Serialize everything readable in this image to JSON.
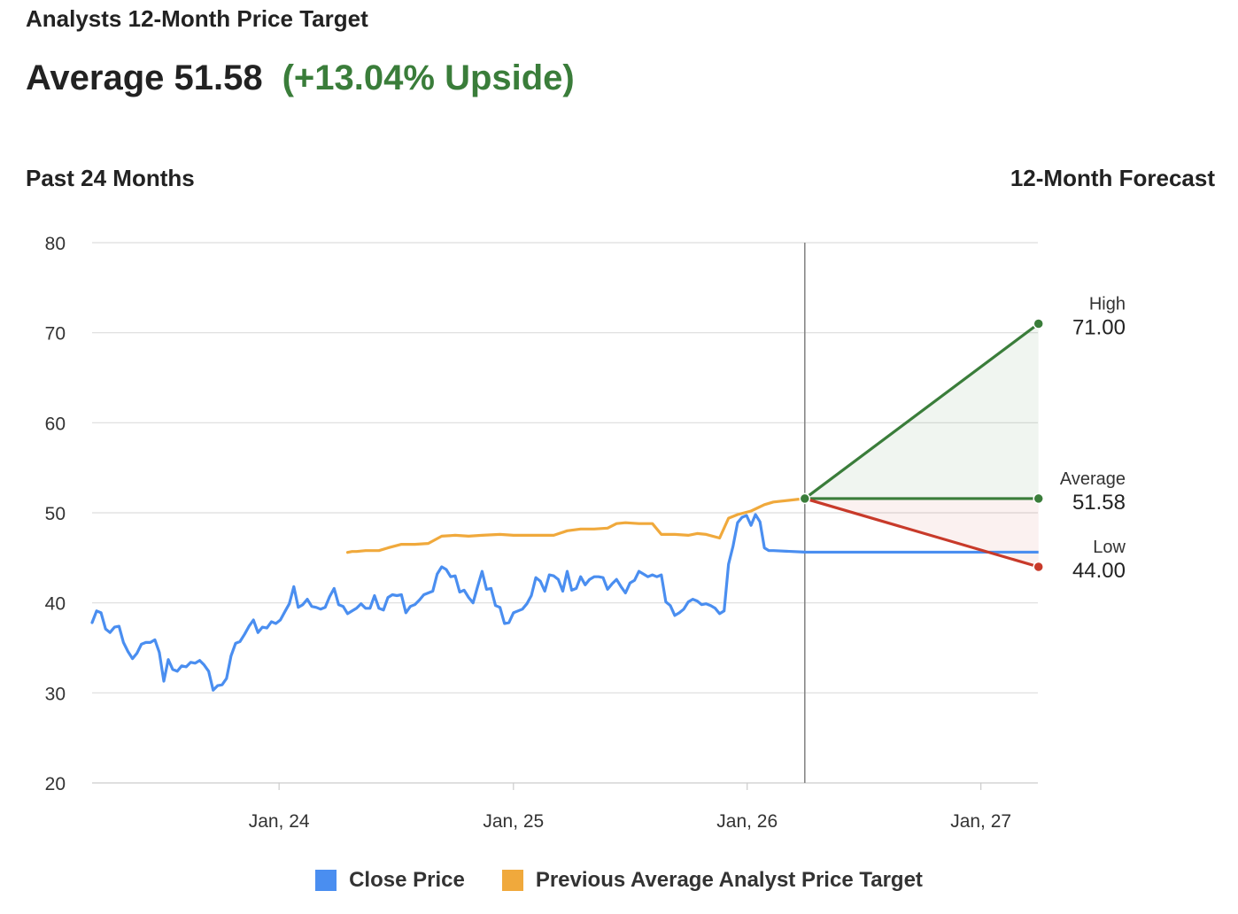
{
  "header": {
    "subtitle": "Analysts 12-Month Price Target",
    "average_text": "Average 51.58",
    "upside_text": "(+13.04% Upside)"
  },
  "sections": {
    "left": "Past 24 Months",
    "right": "12-Month Forecast"
  },
  "colors": {
    "close": "#4a8ef0",
    "previous_target": "#f0a93c",
    "high": "#3a7d3a",
    "low": "#c83a2a",
    "divider": "#888888",
    "grid": "#dddddd"
  },
  "legend": [
    {
      "label": "Close Price",
      "color": "#4a8ef0"
    },
    {
      "label": "Previous Average Analyst Price Target",
      "color": "#f0a93c"
    }
  ],
  "chart_data": {
    "type": "line",
    "title": "",
    "xlabel": "",
    "ylabel": "",
    "ylim": [
      20,
      80
    ],
    "yticks": [
      20,
      30,
      40,
      50,
      60,
      70,
      80
    ],
    "xlim": [
      "2023-03-15",
      "2027-03-31"
    ],
    "xticks": [
      {
        "date": "2024-01-01",
        "label": "Jan, 24"
      },
      {
        "date": "2025-01-01",
        "label": "Jan, 25"
      },
      {
        "date": "2026-01-01",
        "label": "Jan, 26"
      },
      {
        "date": "2027-01-01",
        "label": "Jan, 27"
      }
    ],
    "grid": true,
    "legend_position": "bottom",
    "forecast_start": "2026-04-01",
    "forecast_end": "2027-04-01",
    "series": [
      {
        "name": "Close Price",
        "points": [
          [
            "2023-03-15",
            37.8
          ],
          [
            "2023-03-22",
            39.1
          ],
          [
            "2023-03-29",
            38.9
          ],
          [
            "2023-04-05",
            37.1
          ],
          [
            "2023-04-12",
            36.7
          ],
          [
            "2023-04-19",
            37.3
          ],
          [
            "2023-04-26",
            37.4
          ],
          [
            "2023-05-03",
            35.6
          ],
          [
            "2023-05-10",
            34.6
          ],
          [
            "2023-05-17",
            33.8
          ],
          [
            "2023-05-24",
            34.4
          ],
          [
            "2023-05-31",
            35.4
          ],
          [
            "2023-06-07",
            35.6
          ],
          [
            "2023-06-14",
            35.6
          ],
          [
            "2023-06-21",
            35.9
          ],
          [
            "2023-06-28",
            34.5
          ],
          [
            "2023-07-05",
            31.3
          ],
          [
            "2023-07-12",
            33.7
          ],
          [
            "2023-07-19",
            32.6
          ],
          [
            "2023-07-26",
            32.4
          ],
          [
            "2023-08-02",
            33.0
          ],
          [
            "2023-08-09",
            32.9
          ],
          [
            "2023-08-16",
            33.4
          ],
          [
            "2023-08-23",
            33.3
          ],
          [
            "2023-08-30",
            33.6
          ],
          [
            "2023-09-06",
            33.1
          ],
          [
            "2023-09-13",
            32.4
          ],
          [
            "2023-09-20",
            30.3
          ],
          [
            "2023-09-27",
            30.8
          ],
          [
            "2023-10-04",
            30.9
          ],
          [
            "2023-10-11",
            31.6
          ],
          [
            "2023-10-18",
            34.1
          ],
          [
            "2023-10-25",
            35.5
          ],
          [
            "2023-11-01",
            35.7
          ],
          [
            "2023-11-08",
            36.5
          ],
          [
            "2023-11-15",
            37.4
          ],
          [
            "2023-11-22",
            38.1
          ],
          [
            "2023-11-29",
            36.7
          ],
          [
            "2023-12-06",
            37.3
          ],
          [
            "2023-12-13",
            37.2
          ],
          [
            "2023-12-20",
            37.9
          ],
          [
            "2023-12-27",
            37.7
          ],
          [
            "2024-01-03",
            38.1
          ],
          [
            "2024-01-10",
            39.0
          ],
          [
            "2024-01-17",
            39.9
          ],
          [
            "2024-01-24",
            41.8
          ],
          [
            "2024-01-31",
            39.5
          ],
          [
            "2024-02-07",
            39.8
          ],
          [
            "2024-02-14",
            40.4
          ],
          [
            "2024-02-21",
            39.6
          ],
          [
            "2024-02-28",
            39.5
          ],
          [
            "2024-03-06",
            39.3
          ],
          [
            "2024-03-13",
            39.5
          ],
          [
            "2024-03-20",
            40.7
          ],
          [
            "2024-03-27",
            41.6
          ],
          [
            "2024-04-03",
            39.8
          ],
          [
            "2024-04-10",
            39.6
          ],
          [
            "2024-04-17",
            38.8
          ],
          [
            "2024-04-24",
            39.1
          ],
          [
            "2024-05-01",
            39.4
          ],
          [
            "2024-05-08",
            39.9
          ],
          [
            "2024-05-15",
            39.4
          ],
          [
            "2024-05-22",
            39.4
          ],
          [
            "2024-05-29",
            40.8
          ],
          [
            "2024-06-05",
            39.4
          ],
          [
            "2024-06-12",
            39.2
          ],
          [
            "2024-06-19",
            40.6
          ],
          [
            "2024-06-26",
            40.9
          ],
          [
            "2024-07-03",
            40.8
          ],
          [
            "2024-07-10",
            40.9
          ],
          [
            "2024-07-17",
            38.9
          ],
          [
            "2024-07-24",
            39.6
          ],
          [
            "2024-07-31",
            39.8
          ],
          [
            "2024-08-07",
            40.3
          ],
          [
            "2024-08-14",
            40.9
          ],
          [
            "2024-08-21",
            41.1
          ],
          [
            "2024-08-28",
            41.3
          ],
          [
            "2024-09-04",
            43.2
          ],
          [
            "2024-09-11",
            44.0
          ],
          [
            "2024-09-18",
            43.7
          ],
          [
            "2024-09-25",
            42.9
          ],
          [
            "2024-10-02",
            43.0
          ],
          [
            "2024-10-09",
            41.2
          ],
          [
            "2024-10-16",
            41.4
          ],
          [
            "2024-10-23",
            40.6
          ],
          [
            "2024-10-30",
            40.0
          ],
          [
            "2024-11-06",
            41.8
          ],
          [
            "2024-11-13",
            43.5
          ],
          [
            "2024-11-20",
            41.5
          ],
          [
            "2024-11-27",
            41.6
          ],
          [
            "2024-12-04",
            39.7
          ],
          [
            "2024-12-11",
            39.5
          ],
          [
            "2024-12-18",
            37.7
          ],
          [
            "2024-12-25",
            37.8
          ],
          [
            "2025-01-01",
            38.9
          ],
          [
            "2025-01-08",
            39.1
          ],
          [
            "2025-01-15",
            39.3
          ],
          [
            "2025-01-22",
            39.9
          ],
          [
            "2025-01-29",
            40.8
          ],
          [
            "2025-02-05",
            42.8
          ],
          [
            "2025-02-12",
            42.4
          ],
          [
            "2025-02-19",
            41.3
          ],
          [
            "2025-02-26",
            43.1
          ],
          [
            "2025-03-05",
            43.0
          ],
          [
            "2025-03-12",
            42.6
          ],
          [
            "2025-03-19",
            41.3
          ],
          [
            "2025-03-26",
            43.5
          ],
          [
            "2025-04-02",
            41.4
          ],
          [
            "2025-04-09",
            41.6
          ],
          [
            "2025-04-16",
            42.9
          ],
          [
            "2025-04-23",
            42.0
          ],
          [
            "2025-04-30",
            42.6
          ],
          [
            "2025-05-07",
            42.9
          ],
          [
            "2025-05-14",
            42.9
          ],
          [
            "2025-05-21",
            42.8
          ],
          [
            "2025-05-28",
            41.5
          ],
          [
            "2025-06-04",
            42.1
          ],
          [
            "2025-06-11",
            42.6
          ],
          [
            "2025-06-18",
            41.8
          ],
          [
            "2025-06-25",
            41.1
          ],
          [
            "2025-07-02",
            42.2
          ],
          [
            "2025-07-09",
            42.5
          ],
          [
            "2025-07-16",
            43.5
          ],
          [
            "2025-07-23",
            43.2
          ],
          [
            "2025-07-30",
            42.9
          ],
          [
            "2025-08-06",
            43.1
          ],
          [
            "2025-08-13",
            42.9
          ],
          [
            "2025-08-20",
            43.1
          ],
          [
            "2025-08-27",
            40.1
          ],
          [
            "2025-09-03",
            39.7
          ],
          [
            "2025-09-10",
            38.6
          ],
          [
            "2025-09-17",
            38.9
          ],
          [
            "2025-09-24",
            39.3
          ],
          [
            "2025-10-01",
            40.1
          ],
          [
            "2025-10-08",
            40.4
          ],
          [
            "2025-10-15",
            40.2
          ],
          [
            "2025-10-22",
            39.8
          ],
          [
            "2025-10-29",
            39.9
          ],
          [
            "2025-11-05",
            39.7
          ],
          [
            "2025-11-12",
            39.4
          ],
          [
            "2025-11-19",
            38.8
          ],
          [
            "2025-11-26",
            39.1
          ],
          [
            "2025-12-03",
            44.3
          ],
          [
            "2025-12-10",
            46.3
          ],
          [
            "2025-12-17",
            48.9
          ],
          [
            "2025-12-24",
            49.5
          ],
          [
            "2025-12-31",
            49.7
          ],
          [
            "2026-01-07",
            48.6
          ],
          [
            "2026-01-14",
            49.8
          ],
          [
            "2026-01-21",
            49.0
          ],
          [
            "2026-01-28",
            46.1
          ],
          [
            "2026-02-04",
            45.8
          ],
          [
            "2026-02-11",
            45.8
          ],
          [
            "2026-04-01",
            45.63
          ]
        ]
      },
      {
        "name": "Previous Average Analyst Price Target",
        "points": [
          [
            "2024-04-17",
            45.6
          ],
          [
            "2024-04-24",
            45.7
          ],
          [
            "2024-05-01",
            45.7
          ],
          [
            "2024-05-15",
            45.8
          ],
          [
            "2024-06-05",
            45.8
          ],
          [
            "2024-06-19",
            46.1
          ],
          [
            "2024-07-10",
            46.5
          ],
          [
            "2024-07-31",
            46.5
          ],
          [
            "2024-08-21",
            46.6
          ],
          [
            "2024-09-11",
            47.4
          ],
          [
            "2024-10-02",
            47.5
          ],
          [
            "2024-10-23",
            47.4
          ],
          [
            "2024-11-13",
            47.5
          ],
          [
            "2024-12-11",
            47.6
          ],
          [
            "2025-01-01",
            47.5
          ],
          [
            "2025-01-22",
            47.5
          ],
          [
            "2025-02-12",
            47.5
          ],
          [
            "2025-03-05",
            47.5
          ],
          [
            "2025-03-26",
            48.0
          ],
          [
            "2025-04-16",
            48.2
          ],
          [
            "2025-05-07",
            48.2
          ],
          [
            "2025-05-28",
            48.3
          ],
          [
            "2025-06-11",
            48.8
          ],
          [
            "2025-06-25",
            48.9
          ],
          [
            "2025-07-16",
            48.8
          ],
          [
            "2025-08-06",
            48.8
          ],
          [
            "2025-08-20",
            47.6
          ],
          [
            "2025-09-10",
            47.6
          ],
          [
            "2025-10-01",
            47.5
          ],
          [
            "2025-10-15",
            47.7
          ],
          [
            "2025-10-29",
            47.6
          ],
          [
            "2025-11-19",
            47.2
          ],
          [
            "2025-12-03",
            49.4
          ],
          [
            "2025-12-17",
            49.8
          ],
          [
            "2026-01-07",
            50.2
          ],
          [
            "2026-01-28",
            50.9
          ],
          [
            "2026-02-11",
            51.2
          ],
          [
            "2026-04-01",
            51.58
          ]
        ]
      }
    ],
    "forecast": {
      "start_value": 51.58,
      "high": 71.0,
      "average": 51.58,
      "low": 44.0,
      "labels": {
        "high": {
          "name": "High",
          "value": "71.00"
        },
        "average": {
          "name": "Average",
          "value": "51.58"
        },
        "low": {
          "name": "Low",
          "value": "44.00"
        }
      }
    }
  }
}
